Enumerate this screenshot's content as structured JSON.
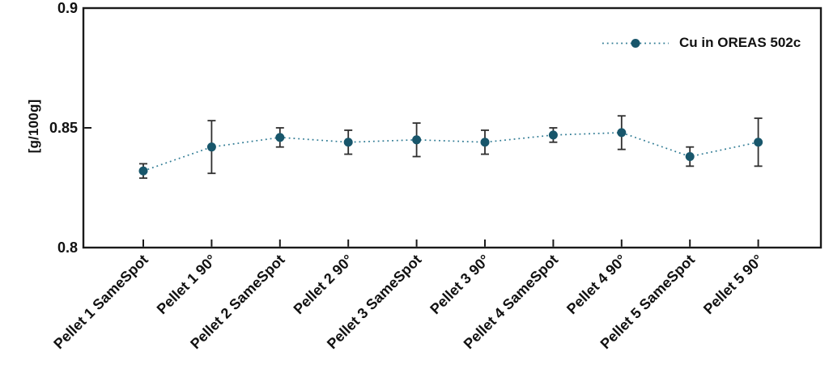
{
  "chart_data": {
    "type": "line",
    "title": "",
    "xlabel": "",
    "ylabel": "[g/100g]",
    "ylim": [
      0.8,
      0.9
    ],
    "yticks": [
      0.9,
      0.85,
      0.8
    ],
    "ytick_labels": [
      "0.9",
      "0.85",
      "0.8"
    ],
    "categories": [
      "Pellet 1 SameSpot",
      "Pellet 1 90°",
      "Pellet 2 SameSpot",
      "Pellet 2 90°",
      "Pellet 3 SameSpot",
      "Pellet 3 90°",
      "Pellet 4 SameSpot",
      "Pellet 4 90°",
      "Pellet 5 SameSpot",
      "Pellet 5 90°"
    ],
    "series": [
      {
        "name": "Cu in OREAS 502c",
        "marker": "circle",
        "line_style": "dotted",
        "values": [
          0.832,
          0.842,
          0.846,
          0.844,
          0.845,
          0.844,
          0.847,
          0.848,
          0.838,
          0.844
        ],
        "errors": [
          0.003,
          0.011,
          0.004,
          0.005,
          0.007,
          0.005,
          0.003,
          0.007,
          0.004,
          0.01
        ]
      }
    ],
    "legend": {
      "label": "Cu in OREAS 502c",
      "position": "top-right"
    },
    "grid": false,
    "colors": {
      "marker": "#18566b",
      "line": "#2e7a93",
      "error_bar": "#2f2f2f",
      "axis": "#1a1a1a",
      "text": "#111111"
    }
  }
}
